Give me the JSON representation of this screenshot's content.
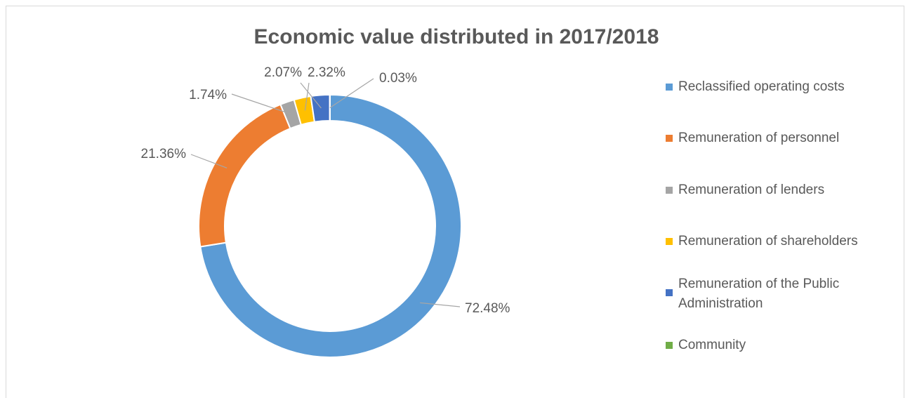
{
  "chart_data": {
    "type": "donut",
    "title": "Economic value distributed in 2017/2018",
    "categories": [
      "Reclassified operating costs",
      "Remuneration of personnel",
      "Remuneration of lenders",
      "Remuneration of shareholders",
      "Remuneration of the Public Administration",
      "Community"
    ],
    "values": [
      72.48,
      21.36,
      1.74,
      2.07,
      2.32,
      0.03
    ],
    "value_labels": [
      "72.48%",
      "21.36%",
      "1.74%",
      "2.07%",
      "2.32%",
      "0.03%"
    ],
    "colors": [
      "#5b9bd5",
      "#ed7d31",
      "#a5a5a5",
      "#ffc000",
      "#4472c4",
      "#70ad47"
    ],
    "legend": "right"
  }
}
